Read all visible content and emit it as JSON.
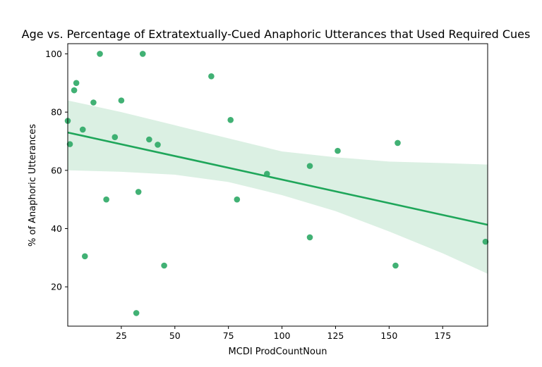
{
  "chart_data": {
    "type": "scatter",
    "title": "Age vs. Percentage of Extratextually-Cued Anaphoric Utterances that Used Required Cues",
    "xlabel": "MCDI ProdCountNoun",
    "ylabel": "% of Anaphoric Utterances",
    "xlim": [
      0,
      196
    ],
    "ylim": [
      6.5,
      103.5
    ],
    "xticks": [
      25,
      50,
      75,
      100,
      125,
      150,
      175
    ],
    "yticks": [
      20,
      40,
      60,
      80,
      100
    ],
    "grid": false,
    "legend": "none",
    "point_color": "#2ca865",
    "line_color": "#1fa65a",
    "band_color": "#dbf0e3",
    "points": [
      {
        "x": 0,
        "y": 77
      },
      {
        "x": 1,
        "y": 69
      },
      {
        "x": 3,
        "y": 87.5
      },
      {
        "x": 4,
        "y": 90
      },
      {
        "x": 7,
        "y": 74
      },
      {
        "x": 8,
        "y": 30.5
      },
      {
        "x": 12,
        "y": 83.3
      },
      {
        "x": 15,
        "y": 100
      },
      {
        "x": 18,
        "y": 50
      },
      {
        "x": 22,
        "y": 71.4
      },
      {
        "x": 25,
        "y": 84
      },
      {
        "x": 32,
        "y": 11
      },
      {
        "x": 33,
        "y": 52.6
      },
      {
        "x": 35,
        "y": 100
      },
      {
        "x": 38,
        "y": 70.6
      },
      {
        "x": 42,
        "y": 68.8
      },
      {
        "x": 45,
        "y": 27.3
      },
      {
        "x": 67,
        "y": 92.3
      },
      {
        "x": 76,
        "y": 77.3
      },
      {
        "x": 79,
        "y": 50
      },
      {
        "x": 93,
        "y": 58.8
      },
      {
        "x": 113,
        "y": 61.5
      },
      {
        "x": 113,
        "y": 37
      },
      {
        "x": 126,
        "y": 66.7
      },
      {
        "x": 153,
        "y": 27.3
      },
      {
        "x": 154,
        "y": 69.4
      },
      {
        "x": 195,
        "y": 35.5
      }
    ],
    "regression": {
      "x": [
        0,
        196
      ],
      "y": [
        73,
        41.3
      ]
    },
    "confidence_band": {
      "x": [
        0,
        25,
        50,
        75,
        100,
        125,
        150,
        175,
        196
      ],
      "upper": [
        84,
        80,
        75.5,
        71,
        66.5,
        64.5,
        63,
        62.5,
        62
      ],
      "lower": [
        60,
        59.5,
        58.5,
        56,
        51.5,
        46,
        39,
        31.5,
        24.5
      ]
    }
  }
}
